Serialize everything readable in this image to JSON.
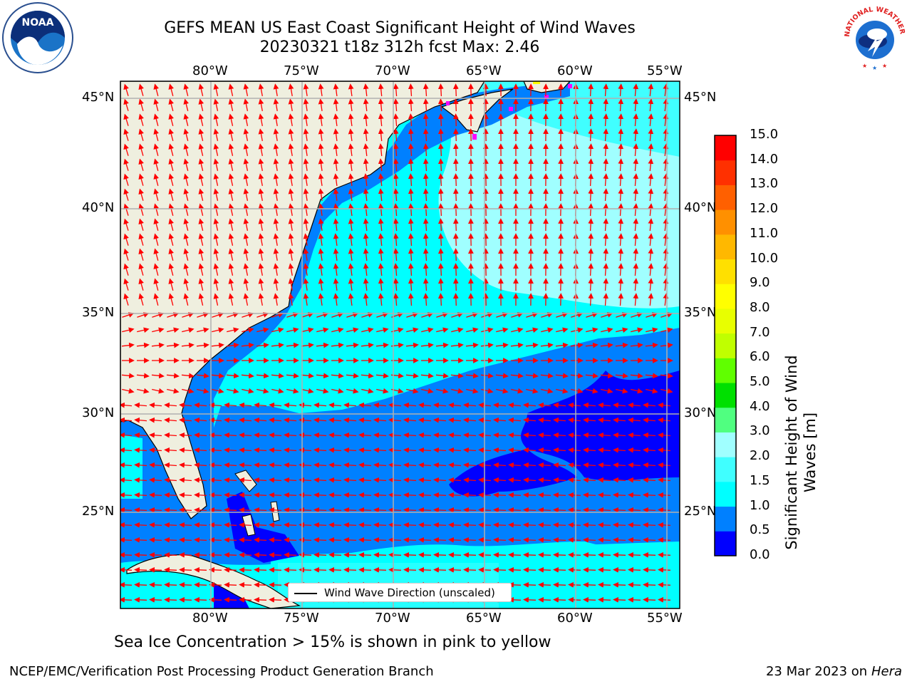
{
  "title": {
    "line1": "GEFS MEAN US East Coast Significant Height of Wind Waves",
    "line2": "20230321 t18z 312h fcst   Max: 2.46"
  },
  "map": {
    "lon_ticks": [
      "80°W",
      "75°W",
      "70°W",
      "65°W",
      "60°W",
      "55°W"
    ],
    "lat_ticks": [
      "45°N",
      "40°N",
      "35°N",
      "30°N",
      "25°N"
    ],
    "colors": {
      "land": "#efefdf",
      "grid": "#b0b0b0",
      "arrow": "#ff0000",
      "ice": "#ff00ff"
    },
    "legend_label": "Wind Wave Direction (unscaled)"
  },
  "colorbar": {
    "title": "Significant Height of Wind Waves [m]",
    "labels": [
      "0.0",
      "0.5",
      "1.0",
      "1.5",
      "2.0",
      "3.0",
      "4.0",
      "5.0",
      "6.0",
      "7.0",
      "8.0",
      "9.0",
      "10.0",
      "11.0",
      "12.0",
      "13.0",
      "14.0",
      "15.0"
    ],
    "colors": [
      "#0000ff",
      "#0080ff",
      "#00ffff",
      "#40ffff",
      "#a0ffff",
      "#50ff80",
      "#00e000",
      "#60ff00",
      "#c0ff00",
      "#e8ff00",
      "#ffff00",
      "#ffe000",
      "#ffb800",
      "#ff9000",
      "#ff6000",
      "#ff3000",
      "#ff0000"
    ]
  },
  "caption": "Sea Ice Concentration > 15% is shown in pink to yellow",
  "footer": {
    "left": "NCEP/EMC/Verification Post Processing Product Generation Branch",
    "date": "23 Mar 2023 on",
    "host": "Hera"
  },
  "logos": {
    "left": "NOAA",
    "right": "NATIONAL WEATHER SERVICE"
  }
}
